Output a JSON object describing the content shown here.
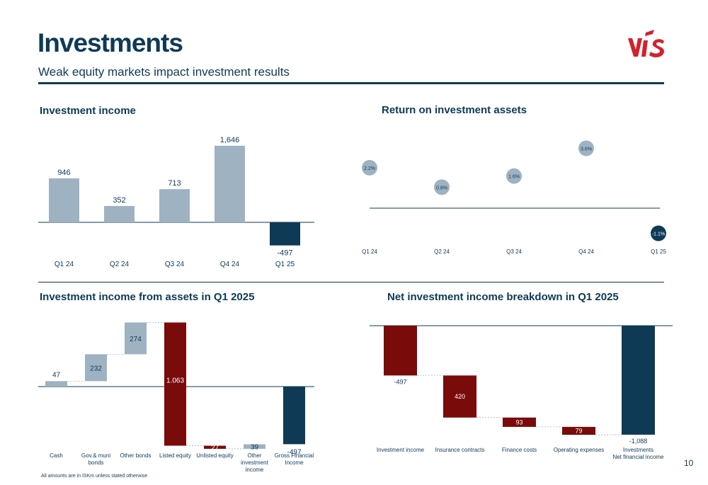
{
  "header": {
    "title": "Investments",
    "subtitle": "Weak equity markets impact investment results",
    "logo_icon": "vis-logo",
    "logo_color": "#d2222d"
  },
  "colors": {
    "navy": "#0e3a56",
    "grey": "#9fb2c1",
    "red": "#7a0b0b"
  },
  "panels": {
    "investment_income": {
      "title": "Investment income"
    },
    "return_assets": {
      "title": "Return on investment assets"
    },
    "income_from_assets": {
      "title": "Investment income from assets in Q1 2025"
    },
    "net_breakdown": {
      "title": "Net investment income breakdown in Q1 2025"
    }
  },
  "chart_data": [
    {
      "id": "investment-income",
      "type": "bar",
      "title": "Investment income",
      "categories": [
        "Q1 24",
        "Q2 24",
        "Q3 24",
        "Q4 24",
        "Q1 25"
      ],
      "values": [
        946,
        352,
        713,
        1646,
        -497
      ],
      "labels": [
        "946",
        "352",
        "713",
        "1,646",
        "-497"
      ]
    },
    {
      "id": "return-on-investment-assets",
      "type": "scatter",
      "title": "Return on investment assets",
      "categories": [
        "Q1 24",
        "Q2 24",
        "Q3 24",
        "Q4 24",
        "Q1 25"
      ],
      "values": [
        2.2,
        0.8,
        1.6,
        3.6,
        -1.1
      ],
      "labels": [
        "2.2%",
        "0.8%",
        "1.6%",
        "3.6%",
        "-1.1%"
      ]
    },
    {
      "id": "income-from-assets",
      "type": "bar",
      "subtype": "waterfall",
      "title": "Investment income from assets in Q1 2025",
      "categories": [
        "Cash",
        "Gov.& muni bonds",
        "Other bonds",
        "Listed equity",
        "Unlisted equity",
        "Other investment income",
        "Gross Financial Income"
      ],
      "category_lines": [
        [
          "Cash"
        ],
        [
          "Gov.& muni",
          "bonds"
        ],
        [
          "Other bonds"
        ],
        [
          "Listed equity"
        ],
        [
          "Unlisted equity"
        ],
        [
          "Other",
          "investment",
          "income"
        ],
        [
          "Gross Financial",
          "Income"
        ]
      ],
      "values": [
        47,
        232,
        274,
        -1063,
        -27,
        39,
        -497
      ],
      "labels": [
        "47",
        "232",
        "274",
        "1.063",
        "27",
        "39",
        "-497"
      ],
      "total_index": 6
    },
    {
      "id": "net-investment-income-breakdown",
      "type": "bar",
      "subtype": "waterfall",
      "title": "Net investment income breakdown in Q1 2025",
      "categories": [
        "Investment income",
        "Insurance contracts",
        "Finance costs",
        "Operating expenses",
        "Investments Net financial income"
      ],
      "category_lines": [
        [
          "Investment income"
        ],
        [
          "Insurance contracts"
        ],
        [
          "Finance costs"
        ],
        [
          "Operating expenses"
        ],
        [
          "Investments",
          "Net financial income"
        ]
      ],
      "values": [
        -497,
        -420,
        -93,
        -79,
        -1088
      ],
      "labels": [
        "-497",
        "420",
        "93",
        "79",
        "-1,088"
      ],
      "total_index": 4
    }
  ],
  "footer": {
    "page_number": "10",
    "footnote": "All amounts are in ISKm unless stated otherwise"
  }
}
